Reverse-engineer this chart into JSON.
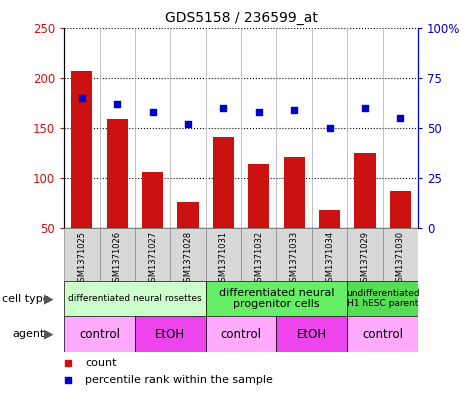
{
  "title": "GDS5158 / 236599_at",
  "samples": [
    "GSM1371025",
    "GSM1371026",
    "GSM1371027",
    "GSM1371028",
    "GSM1371031",
    "GSM1371032",
    "GSM1371033",
    "GSM1371034",
    "GSM1371029",
    "GSM1371030"
  ],
  "counts": [
    207,
    159,
    106,
    76,
    141,
    114,
    121,
    68,
    125,
    87
  ],
  "percentiles": [
    65,
    62,
    58,
    52,
    60,
    58,
    59,
    50,
    60,
    55
  ],
  "bar_color": "#cc1111",
  "dot_color": "#0000cc",
  "ymin": 50,
  "ymax": 250,
  "yticks_left": [
    50,
    100,
    150,
    200,
    250
  ],
  "y2min": 0,
  "y2max": 100,
  "y2ticks": [
    0,
    25,
    50,
    75,
    100
  ],
  "y2ticklabels": [
    "0",
    "25",
    "50",
    "75",
    "100%"
  ],
  "cell_type_groups": [
    {
      "label": "differentiated neural rosettes",
      "start": 0,
      "end": 3,
      "color": "#ccffcc",
      "fontsize": 6.5
    },
    {
      "label": "differentiated neural\nprogenitor cells",
      "start": 4,
      "end": 7,
      "color": "#66ee66",
      "fontsize": 8
    },
    {
      "label": "undifferentiated\nH1 hESC parent",
      "start": 8,
      "end": 9,
      "color": "#55dd55",
      "fontsize": 6.5
    }
  ],
  "agent_groups": [
    {
      "label": "control",
      "start": 0,
      "end": 1,
      "color": "#ffaaff"
    },
    {
      "label": "EtOH",
      "start": 2,
      "end": 3,
      "color": "#ee44ee"
    },
    {
      "label": "control",
      "start": 4,
      "end": 5,
      "color": "#ffaaff"
    },
    {
      "label": "EtOH",
      "start": 6,
      "end": 7,
      "color": "#ee44ee"
    },
    {
      "label": "control",
      "start": 8,
      "end": 9,
      "color": "#ffaaff"
    }
  ],
  "legend_count_color": "#cc1111",
  "legend_dot_color": "#0000cc",
  "cell_type_label": "cell type",
  "agent_label": "agent",
  "bg_color": "#ffffff",
  "plot_area_bg": "#ffffff",
  "label_area_bg": "#cccccc"
}
